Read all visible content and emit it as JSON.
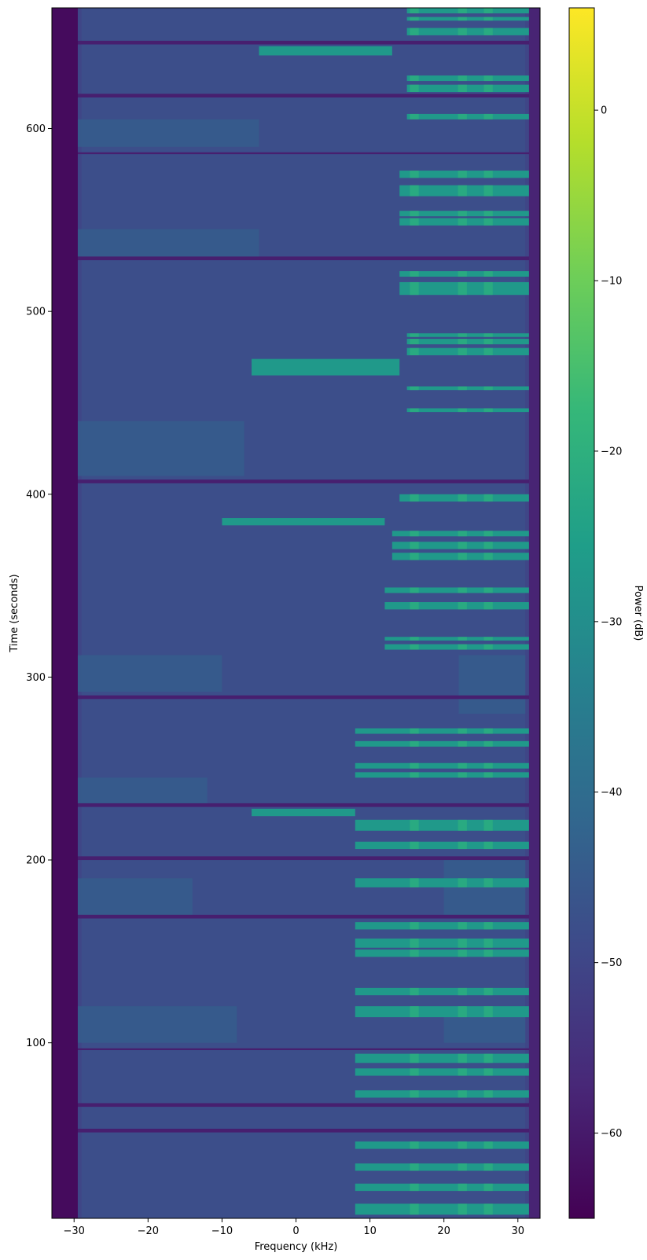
{
  "chart_data": {
    "type": "heatmap",
    "subtype": "spectrogram",
    "title": "",
    "xlabel": "Frequency (kHz)",
    "ylabel": "Time (seconds)",
    "colorbar_label": "Power (dB)",
    "colormap": "viridis",
    "colormap_stops": [
      "#440154",
      "#482878",
      "#3e4989",
      "#31688e",
      "#26828e",
      "#1f9e89",
      "#35b779",
      "#6ece58",
      "#b5de2b",
      "#fde725"
    ],
    "xlim": [
      -33,
      33
    ],
    "ylim": [
      4,
      666
    ],
    "clim": [
      -65,
      6
    ],
    "x_ticks": [
      {
        "value": -30,
        "label": "−30"
      },
      {
        "value": -20,
        "label": "−20"
      },
      {
        "value": -10,
        "label": "−10"
      },
      {
        "value": 0,
        "label": "0"
      },
      {
        "value": 10,
        "label": "10"
      },
      {
        "value": 20,
        "label": "20"
      },
      {
        "value": 30,
        "label": "30"
      }
    ],
    "y_ticks": [
      {
        "value": 100,
        "label": "100"
      },
      {
        "value": 200,
        "label": "200"
      },
      {
        "value": 300,
        "label": "300"
      },
      {
        "value": 400,
        "label": "400"
      },
      {
        "value": 500,
        "label": "500"
      },
      {
        "value": 600,
        "label": "600"
      }
    ],
    "colorbar_ticks": [
      {
        "value": 0,
        "label": "0"
      },
      {
        "value": -10,
        "label": "−10"
      },
      {
        "value": -20,
        "label": "−20"
      },
      {
        "value": -30,
        "label": "−30"
      },
      {
        "value": -40,
        "label": "−40"
      },
      {
        "value": -50,
        "label": "−50"
      },
      {
        "value": -60,
        "label": "−60"
      }
    ],
    "power_levels_db": {
      "band_edge_floor": -63,
      "background": -50,
      "channel_noise": -44,
      "signal_bursts": -27
    },
    "bursts": [
      {
        "t_start": 6,
        "t_end": 12,
        "f_lo": 8,
        "f_hi": 33
      },
      {
        "t_start": 19,
        "t_end": 23,
        "f_lo": 8,
        "f_hi": 33
      },
      {
        "t_start": 30,
        "t_end": 34,
        "f_lo": 8,
        "f_hi": 33
      },
      {
        "t_start": 42,
        "t_end": 46,
        "f_lo": 8,
        "f_hi": 33
      },
      {
        "t_start": 70,
        "t_end": 74,
        "f_lo": 8,
        "f_hi": 33
      },
      {
        "t_start": 82,
        "t_end": 86,
        "f_lo": 8,
        "f_hi": 33
      },
      {
        "t_start": 89,
        "t_end": 94,
        "f_lo": 8,
        "f_hi": 33
      },
      {
        "t_start": 114,
        "t_end": 120,
        "f_lo": 8,
        "f_hi": 33
      },
      {
        "t_start": 126,
        "t_end": 130,
        "f_lo": 8,
        "f_hi": 33
      },
      {
        "t_start": 147,
        "t_end": 151,
        "f_lo": 8,
        "f_hi": 33
      },
      {
        "t_start": 152,
        "t_end": 157,
        "f_lo": 8,
        "f_hi": 33
      },
      {
        "t_start": 162,
        "t_end": 166,
        "f_lo": 8,
        "f_hi": 33
      },
      {
        "t_start": 185,
        "t_end": 190,
        "f_lo": 8,
        "f_hi": 33
      },
      {
        "t_start": 206,
        "t_end": 210,
        "f_lo": 8,
        "f_hi": 33
      },
      {
        "t_start": 216,
        "t_end": 222,
        "f_lo": 8,
        "f_hi": 33
      },
      {
        "t_start": 245,
        "t_end": 248,
        "f_lo": 8,
        "f_hi": 33
      },
      {
        "t_start": 250,
        "t_end": 253,
        "f_lo": 8,
        "f_hi": 33
      },
      {
        "t_start": 262,
        "t_end": 265,
        "f_lo": 8,
        "f_hi": 33
      },
      {
        "t_start": 269,
        "t_end": 272,
        "f_lo": 8,
        "f_hi": 33
      },
      {
        "t_start": 224,
        "t_end": 228,
        "f_lo": -6,
        "f_hi": 8
      },
      {
        "t_start": 315,
        "t_end": 318,
        "f_lo": 12,
        "f_hi": 33
      },
      {
        "t_start": 320,
        "t_end": 322,
        "f_lo": 12,
        "f_hi": 33
      },
      {
        "t_start": 337,
        "t_end": 341,
        "f_lo": 12,
        "f_hi": 33
      },
      {
        "t_start": 346,
        "t_end": 349,
        "f_lo": 12,
        "f_hi": 33
      },
      {
        "t_start": 364,
        "t_end": 368,
        "f_lo": 13,
        "f_hi": 33
      },
      {
        "t_start": 370,
        "t_end": 374,
        "f_lo": 13,
        "f_hi": 33
      },
      {
        "t_start": 377,
        "t_end": 380,
        "f_lo": 13,
        "f_hi": 33
      },
      {
        "t_start": 396,
        "t_end": 400,
        "f_lo": 14,
        "f_hi": 33
      },
      {
        "t_start": 383,
        "t_end": 387,
        "f_lo": -10,
        "f_hi": 12
      },
      {
        "t_start": 445,
        "t_end": 447,
        "f_lo": 15,
        "f_hi": 33
      },
      {
        "t_start": 457,
        "t_end": 459,
        "f_lo": 15,
        "f_hi": 33
      },
      {
        "t_start": 465,
        "t_end": 474,
        "f_lo": -6,
        "f_hi": 14
      },
      {
        "t_start": 476,
        "t_end": 480,
        "f_lo": 15,
        "f_hi": 33
      },
      {
        "t_start": 482,
        "t_end": 485,
        "f_lo": 15,
        "f_hi": 33
      },
      {
        "t_start": 486,
        "t_end": 488,
        "f_lo": 15,
        "f_hi": 33
      },
      {
        "t_start": 509,
        "t_end": 516,
        "f_lo": 14,
        "f_hi": 33
      },
      {
        "t_start": 519,
        "t_end": 522,
        "f_lo": 14,
        "f_hi": 33
      },
      {
        "t_start": 547,
        "t_end": 551,
        "f_lo": 14,
        "f_hi": 33
      },
      {
        "t_start": 552,
        "t_end": 555,
        "f_lo": 14,
        "f_hi": 33
      },
      {
        "t_start": 563,
        "t_end": 569,
        "f_lo": 14,
        "f_hi": 33
      },
      {
        "t_start": 573,
        "t_end": 577,
        "f_lo": 14,
        "f_hi": 33
      },
      {
        "t_start": 605,
        "t_end": 608,
        "f_lo": 15,
        "f_hi": 33
      },
      {
        "t_start": 620,
        "t_end": 624,
        "f_lo": 15,
        "f_hi": 33
      },
      {
        "t_start": 626,
        "t_end": 629,
        "f_lo": 15,
        "f_hi": 33
      },
      {
        "t_start": 640,
        "t_end": 645,
        "f_lo": -5,
        "f_hi": 13
      },
      {
        "t_start": 651,
        "t_end": 655,
        "f_lo": 15,
        "f_hi": 33
      },
      {
        "t_start": 659,
        "t_end": 661,
        "f_lo": 15,
        "f_hi": 33
      },
      {
        "t_start": 663,
        "t_end": 666,
        "f_lo": 15,
        "f_hi": 33
      }
    ],
    "dark_gaps": [
      {
        "t_start": 51,
        "t_end": 53
      },
      {
        "t_start": 65,
        "t_end": 67
      },
      {
        "t_start": 96,
        "t_end": 97
      },
      {
        "t_start": 168,
        "t_end": 170
      },
      {
        "t_start": 200,
        "t_end": 202
      },
      {
        "t_start": 229,
        "t_end": 231
      },
      {
        "t_start": 288,
        "t_end": 290
      },
      {
        "t_start": 406,
        "t_end": 408
      },
      {
        "t_start": 528,
        "t_end": 530
      },
      {
        "t_start": 586,
        "t_end": 587
      },
      {
        "t_start": 617,
        "t_end": 619
      },
      {
        "t_start": 646,
        "t_end": 648
      }
    ],
    "noise_regions": [
      {
        "t_start": 100,
        "t_end": 120,
        "f_lo": -30,
        "f_hi": -8
      },
      {
        "t_start": 170,
        "t_end": 190,
        "f_lo": -30,
        "f_hi": -14
      },
      {
        "t_start": 230,
        "t_end": 245,
        "f_lo": -30,
        "f_hi": -12
      },
      {
        "t_start": 292,
        "t_end": 312,
        "f_lo": -30,
        "f_hi": -10
      },
      {
        "t_start": 410,
        "t_end": 440,
        "f_lo": -30,
        "f_hi": -7
      },
      {
        "t_start": 530,
        "t_end": 545,
        "f_lo": -30,
        "f_hi": -5
      },
      {
        "t_start": 590,
        "t_end": 605,
        "f_lo": -30,
        "f_hi": -5
      },
      {
        "t_start": 170,
        "t_end": 200,
        "f_lo": 20,
        "f_hi": 31
      },
      {
        "t_start": 280,
        "t_end": 312,
        "f_lo": 22,
        "f_hi": 31
      },
      {
        "t_start": 100,
        "t_end": 115,
        "f_lo": 20,
        "f_hi": 31
      }
    ]
  }
}
